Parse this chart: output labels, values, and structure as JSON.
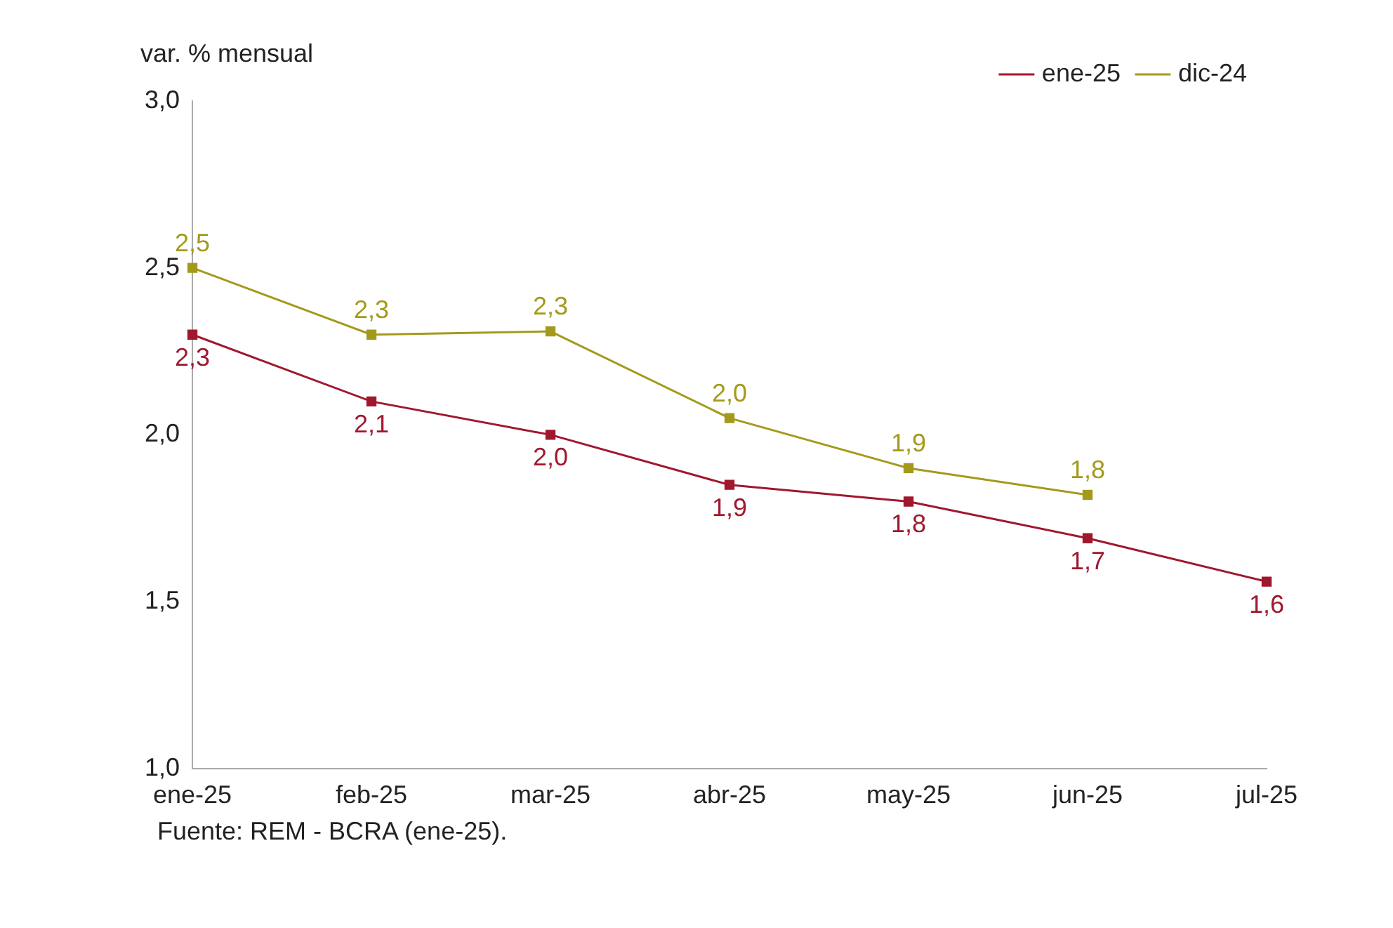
{
  "chart_data": {
    "type": "line",
    "ylabel": "var. % mensual",
    "annotations": [
      "Fuente: REM - BCRA (ene-25)."
    ],
    "categories": [
      "ene-25",
      "feb-25",
      "mar-25",
      "abr-25",
      "may-25",
      "jun-25",
      "jul-25"
    ],
    "series": [
      {
        "name": "ene-25",
        "color": "#a0182e",
        "values": [
          2.3,
          2.1,
          2.0,
          1.85,
          1.8,
          1.69,
          1.56
        ],
        "value_labels": [
          "2,3",
          "2,1",
          "2,0",
          "1,9",
          "1,8",
          "1,7",
          "1,6"
        ]
      },
      {
        "name": "dic-24",
        "color": "#a39a1c",
        "values": [
          2.5,
          2.3,
          2.31,
          2.05,
          1.9,
          1.82,
          null
        ],
        "value_labels": [
          "2,5",
          "2,3",
          "2,3",
          "2,0",
          "1,9",
          "1,8",
          null
        ]
      }
    ],
    "ylim": [
      1.0,
      3.0
    ],
    "yticks": [
      {
        "value": 1.0,
        "label": "1,0"
      },
      {
        "value": 1.5,
        "label": "1,5"
      },
      {
        "value": 2.0,
        "label": "2,0"
      },
      {
        "value": 2.5,
        "label": "2,5"
      },
      {
        "value": 3.0,
        "label": "3,0"
      }
    ],
    "grid": false,
    "legend": "top right",
    "marker": "square",
    "line_style": "solid"
  }
}
